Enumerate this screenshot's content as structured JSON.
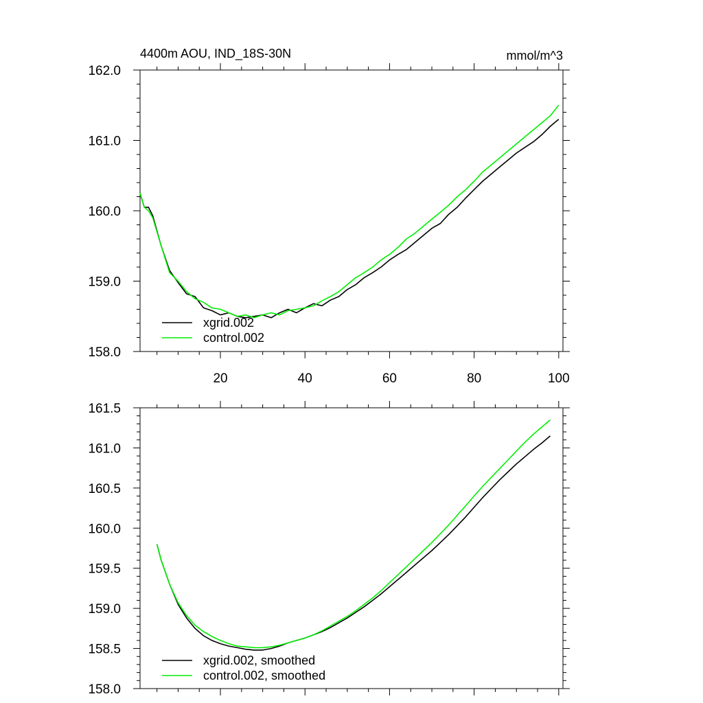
{
  "chart_data": [
    {
      "type": "line",
      "title": "4400m AOU, IND_18S-30N",
      "units": "mmol/m^3",
      "xlim": [
        1,
        101
      ],
      "ylim": [
        158.0,
        162.0
      ],
      "xticks": [
        20,
        40,
        60,
        80,
        100
      ],
      "xtick_labels": [
        "20",
        "40",
        "60",
        "80",
        "100"
      ],
      "yticks": [
        158.0,
        159.0,
        160.0,
        161.0,
        162.0
      ],
      "ytick_labels": [
        "158.0",
        "159.0",
        "160.0",
        "161.0",
        "162.0"
      ],
      "legend_position": "bottom-left",
      "series": [
        {
          "name": "xgrid.002",
          "color": "#000000",
          "x": [
            1,
            2,
            3,
            4,
            6,
            8,
            10,
            12,
            14,
            16,
            18,
            20,
            22,
            24,
            26,
            28,
            30,
            32,
            34,
            36,
            38,
            40,
            42,
            44,
            46,
            48,
            50,
            52,
            54,
            56,
            58,
            60,
            62,
            64,
            66,
            68,
            70,
            72,
            74,
            76,
            78,
            80,
            82,
            84,
            86,
            88,
            90,
            92,
            94,
            96,
            98,
            100
          ],
          "y": [
            160.25,
            160.05,
            160.05,
            159.93,
            159.5,
            159.15,
            158.98,
            158.82,
            158.78,
            158.62,
            158.58,
            158.52,
            158.55,
            158.5,
            158.48,
            158.5,
            158.52,
            158.48,
            158.55,
            158.6,
            158.55,
            158.62,
            158.68,
            158.65,
            158.73,
            158.78,
            158.88,
            158.95,
            159.05,
            159.12,
            159.2,
            159.3,
            159.38,
            159.45,
            159.55,
            159.65,
            159.75,
            159.82,
            159.95,
            160.05,
            160.18,
            160.3,
            160.42,
            160.52,
            160.62,
            160.72,
            160.82,
            160.9,
            160.98,
            161.08,
            161.2,
            161.3
          ]
        },
        {
          "name": "control.002",
          "color": "#00ee00",
          "x": [
            1,
            2,
            3,
            4,
            6,
            8,
            10,
            12,
            14,
            16,
            18,
            20,
            22,
            24,
            26,
            28,
            30,
            32,
            34,
            36,
            38,
            40,
            42,
            44,
            46,
            48,
            50,
            52,
            54,
            56,
            58,
            60,
            62,
            64,
            66,
            68,
            70,
            72,
            74,
            76,
            78,
            80,
            82,
            84,
            86,
            88,
            90,
            92,
            94,
            96,
            98,
            100
          ],
          "y": [
            160.25,
            160.05,
            160.0,
            159.9,
            159.5,
            159.12,
            159.0,
            158.85,
            158.75,
            158.7,
            158.62,
            158.6,
            158.55,
            158.5,
            158.52,
            158.48,
            158.52,
            158.55,
            158.52,
            158.58,
            158.6,
            158.62,
            158.65,
            158.72,
            158.78,
            158.85,
            158.95,
            159.05,
            159.12,
            159.2,
            159.3,
            159.38,
            159.48,
            159.6,
            159.68,
            159.78,
            159.88,
            159.98,
            160.08,
            160.2,
            160.3,
            160.42,
            160.55,
            160.65,
            160.75,
            160.85,
            160.95,
            161.05,
            161.15,
            161.25,
            161.35,
            161.5
          ]
        }
      ]
    },
    {
      "type": "line",
      "title": "",
      "xlim": [
        1,
        101
      ],
      "ylim": [
        158.0,
        161.5
      ],
      "xticks": [
        20,
        40,
        60,
        80,
        100
      ],
      "xtick_labels": [],
      "yticks": [
        158.0,
        158.5,
        159.0,
        159.5,
        160.0,
        160.5,
        161.0,
        161.5
      ],
      "ytick_labels": [
        "158.0",
        "158.5",
        "159.0",
        "159.5",
        "160.0",
        "160.5",
        "161.0",
        "161.5"
      ],
      "legend_position": "bottom-left",
      "series": [
        {
          "name": "xgrid.002, smoothed",
          "color": "#000000",
          "x": [
            5,
            6,
            8,
            10,
            12,
            14,
            16,
            18,
            20,
            22,
            24,
            26,
            28,
            30,
            32,
            34,
            36,
            38,
            40,
            42,
            44,
            46,
            48,
            50,
            52,
            54,
            56,
            58,
            60,
            62,
            64,
            66,
            68,
            70,
            72,
            74,
            76,
            78,
            80,
            82,
            84,
            86,
            88,
            90,
            92,
            94,
            96,
            98
          ],
          "y": [
            159.8,
            159.6,
            159.3,
            159.05,
            158.88,
            158.75,
            158.66,
            158.6,
            158.56,
            158.53,
            158.51,
            158.49,
            158.48,
            158.48,
            158.5,
            158.53,
            158.57,
            158.6,
            158.63,
            158.67,
            158.71,
            158.76,
            158.82,
            158.88,
            158.95,
            159.02,
            159.1,
            159.18,
            159.27,
            159.36,
            159.45,
            159.54,
            159.63,
            159.72,
            159.82,
            159.92,
            160.03,
            160.14,
            160.26,
            160.38,
            160.49,
            160.6,
            160.7,
            160.8,
            160.89,
            160.98,
            161.06,
            161.15
          ]
        },
        {
          "name": "control.002, smoothed",
          "color": "#00ee00",
          "x": [
            5,
            6,
            8,
            10,
            12,
            14,
            16,
            18,
            20,
            22,
            24,
            26,
            28,
            30,
            32,
            34,
            36,
            38,
            40,
            42,
            44,
            46,
            48,
            50,
            52,
            54,
            56,
            58,
            60,
            62,
            64,
            66,
            68,
            70,
            72,
            74,
            76,
            78,
            80,
            82,
            84,
            86,
            88,
            90,
            92,
            94,
            96,
            98
          ],
          "y": [
            159.8,
            159.6,
            159.3,
            159.07,
            158.91,
            158.79,
            158.71,
            158.65,
            158.6,
            158.56,
            158.53,
            158.52,
            158.51,
            158.51,
            158.52,
            158.54,
            158.57,
            158.6,
            158.63,
            158.67,
            158.72,
            158.78,
            158.84,
            158.9,
            158.97,
            159.05,
            159.13,
            159.22,
            159.32,
            159.42,
            159.52,
            159.62,
            159.72,
            159.82,
            159.93,
            160.04,
            160.16,
            160.28,
            160.4,
            160.52,
            160.63,
            160.74,
            160.85,
            160.96,
            161.07,
            161.17,
            161.26,
            161.35
          ]
        }
      ]
    }
  ]
}
